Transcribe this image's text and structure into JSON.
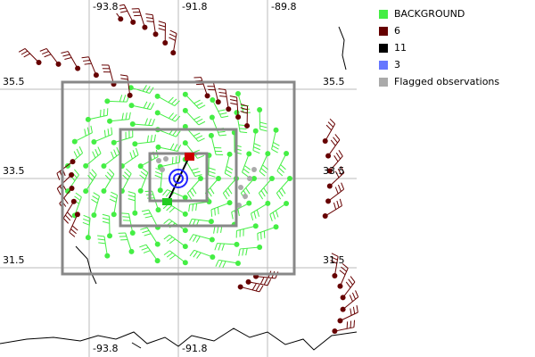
{
  "map": {
    "lon_labels_top": [
      "-93.8",
      "-91.8",
      "-89.8"
    ],
    "lat_labels_left": [
      "35.5",
      "33.5",
      "31.5"
    ],
    "lat_labels_right": [
      "35.5",
      "33.5",
      "31.5"
    ],
    "lon_labels_bottom": [
      "-93.8",
      "-91.8"
    ]
  },
  "legend": [
    {
      "label": "BACKGROUND",
      "color": "#44ee44"
    },
    {
      "label": "6",
      "color": "#660000"
    },
    {
      "label": "11",
      "color": "#000000"
    },
    {
      "label": "3",
      "color": "#6677ff"
    },
    {
      "label": "Flagged observations",
      "color": "#aaaaaa"
    }
  ]
}
